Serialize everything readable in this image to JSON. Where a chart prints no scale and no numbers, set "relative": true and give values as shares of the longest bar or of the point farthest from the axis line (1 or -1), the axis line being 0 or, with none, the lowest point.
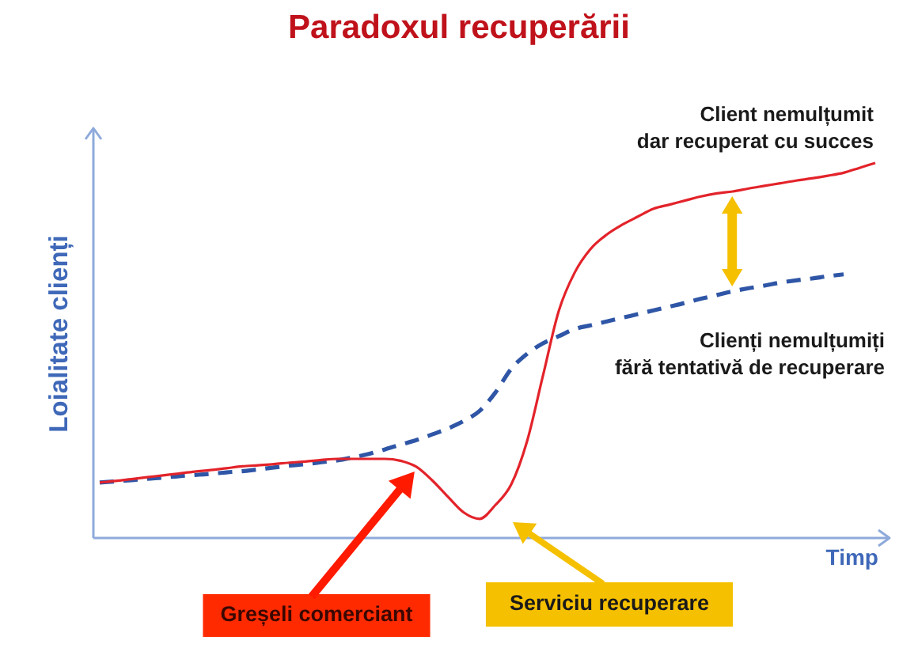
{
  "chart_data": {
    "type": "line",
    "title": "Paradoxul recuperării",
    "xlabel": "Timp",
    "ylabel": "Loialitate clienți",
    "relative": true,
    "legend": false,
    "marker": "none",
    "categories": [
      null,
      null,
      null,
      null,
      null,
      null,
      null,
      null,
      null,
      null,
      null,
      null,
      null,
      null,
      null,
      null,
      null,
      null,
      null,
      null,
      null,
      null,
      null,
      null,
      null,
      null,
      null,
      null,
      null,
      null,
      null,
      null,
      null,
      null,
      null,
      null,
      null,
      null,
      null,
      null,
      null,
      null,
      null,
      null,
      null,
      null,
      null,
      null,
      null,
      null
    ],
    "series": [
      {
        "name": "Client nemulțumit\ndar recuperat cu succes",
        "color": "#e3232a",
        "line_style": "solid",
        "values": [
          0.148,
          0.152,
          0.157,
          0.162,
          0.167,
          0.172,
          0.177,
          0.181,
          0.186,
          0.191,
          0.194,
          0.197,
          0.201,
          0.204,
          0.208,
          0.211,
          0.211,
          0.211,
          0.211,
          0.206,
          0.19,
          0.154,
          0.11,
          0.068,
          0.051,
          0.088,
          0.143,
          0.258,
          0.432,
          0.605,
          0.707,
          0.77,
          0.808,
          0.835,
          0.857,
          0.878,
          0.889,
          0.9,
          0.911,
          0.919,
          0.924,
          0.932,
          0.939,
          0.946,
          0.953,
          0.959,
          0.966,
          0.974,
          0.987,
          1
        ]
      },
      {
        "name": "Clienți nemulțumiți\nfără tentativă de recuperare",
        "color": "#2f56a6",
        "line_style": "dashed",
        "values": [
          0.148,
          0.151,
          0.154,
          0.158,
          0.161,
          0.165,
          0.168,
          0.171,
          0.175,
          0.178,
          0.183,
          0.188,
          0.193,
          0.197,
          0.202,
          0.207,
          0.215,
          0.224,
          0.236,
          0.249,
          0.261,
          0.276,
          0.292,
          0.312,
          0.339,
          0.388,
          0.451,
          0.491,
          0.519,
          0.538,
          0.557,
          0.567,
          0.577,
          0.587,
          0.597,
          0.607,
          0.617,
          0.627,
          0.638,
          0.648,
          0.658,
          0.666,
          0.673,
          0.681,
          0.687,
          0.692,
          0.698,
          0.703,
          null,
          null
        ]
      }
    ],
    "annotations": [
      "Greșeli comerciant",
      "Serviciu recuperare"
    ]
  }
}
